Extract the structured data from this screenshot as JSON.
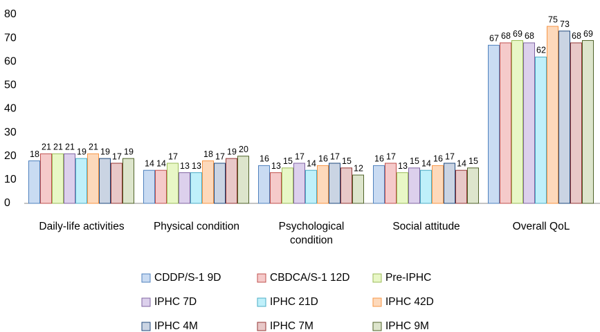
{
  "chart_data": {
    "type": "bar",
    "categories": [
      "Daily-life activities",
      "Physical condition",
      "Psychological condition",
      "Social attitude",
      "Overall QoL"
    ],
    "series": [
      {
        "name": "CDDP/S-1 9D",
        "color": "#4f81bd",
        "fill": "#c9dbf2",
        "values": [
          18,
          14,
          16,
          16,
          67
        ]
      },
      {
        "name": "CBDCA/S-1 12D",
        "color": "#c0504d",
        "fill": "#f5caca",
        "values": [
          21,
          14,
          13,
          17,
          68
        ]
      },
      {
        "name": "Pre-IPHC",
        "color": "#9bbb59",
        "fill": "#e8f7c6",
        "values": [
          21,
          17,
          15,
          13,
          69
        ]
      },
      {
        "name": "IPHC 7D",
        "color": "#8064a2",
        "fill": "#dcd0ec",
        "values": [
          21,
          13,
          17,
          15,
          68
        ]
      },
      {
        "name": "IPHC 21D",
        "color": "#4bacc6",
        "fill": "#bff0fa",
        "values": [
          19,
          13,
          14,
          14,
          62
        ]
      },
      {
        "name": "IPHC 42D",
        "color": "#f79646",
        "fill": "#fdd9bb",
        "values": [
          21,
          18,
          16,
          16,
          75
        ]
      },
      {
        "name": "IPHC 4M",
        "color": "#1f497d",
        "fill": "#cad4e3",
        "values": [
          19,
          17,
          17,
          17,
          73
        ]
      },
      {
        "name": "IPHC 7M",
        "color": "#943634",
        "fill": "#e8c8c8",
        "values": [
          17,
          19,
          15,
          14,
          68
        ]
      },
      {
        "name": "IPHC 9M",
        "color": "#4f6228",
        "fill": "#dde5cc",
        "values": [
          19,
          20,
          12,
          15,
          69
        ]
      }
    ],
    "ylim": [
      0,
      80
    ],
    "yticks": [
      0,
      10,
      20,
      30,
      40,
      50,
      60,
      70,
      80
    ],
    "grid": false
  }
}
